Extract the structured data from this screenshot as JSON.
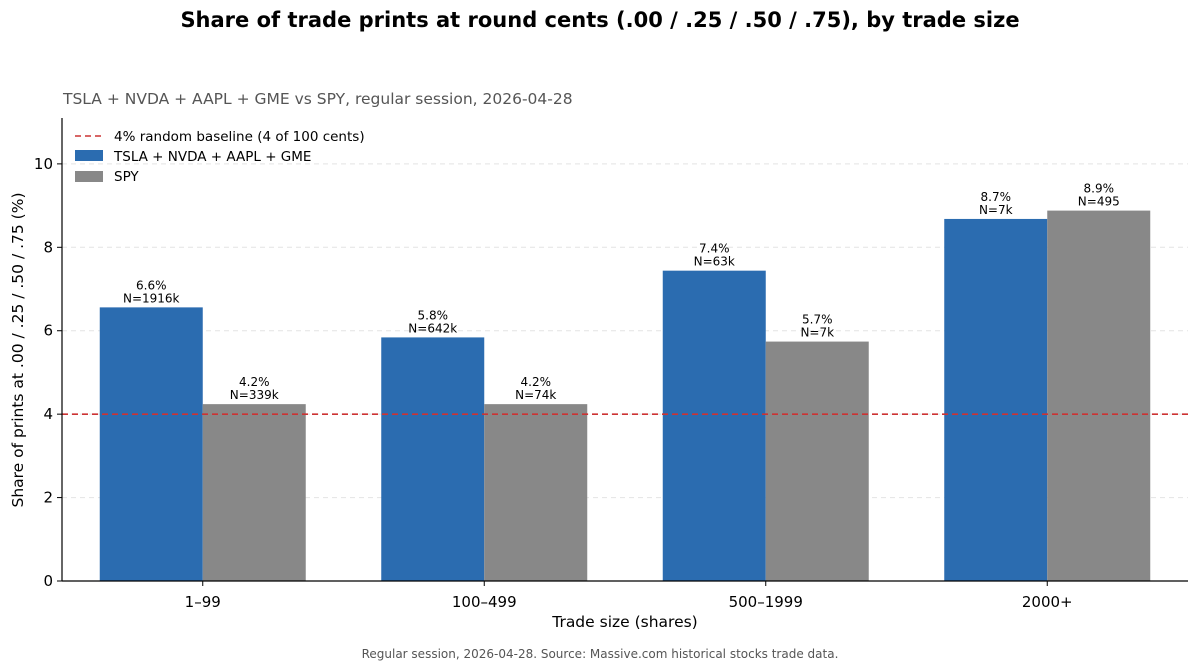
{
  "chart_data": {
    "type": "bar",
    "title": "Share of trade prints at round cents (.00 / .25 / .50 / .75), by trade size",
    "subtitle": "TSLA + NVDA + AAPL + GME vs SPY, regular session, 2026-04-28",
    "xlabel": "Trade size (shares)",
    "ylabel": "Share of prints at .00 / .25 / .50 / .75 (%)",
    "ylim": [
      0,
      11.1
    ],
    "yticks": [
      0,
      2,
      4,
      6,
      8,
      10
    ],
    "categories": [
      "1–99",
      "100–499",
      "500–1999",
      "2000+"
    ],
    "series": [
      {
        "name": "TSLA + NVDA + AAPL + GME",
        "color": "#2b6cb0",
        "values": [
          6.56,
          5.84,
          7.44,
          8.68
        ],
        "labels": [
          "6.6%",
          "5.8%",
          "7.4%",
          "8.7%"
        ],
        "counts": [
          "N=1916k",
          "N=642k",
          "N=63k",
          "N=7k"
        ]
      },
      {
        "name": "SPY",
        "color": "#888888",
        "values": [
          4.24,
          4.24,
          5.74,
          8.88
        ],
        "labels": [
          "4.2%",
          "4.2%",
          "5.7%",
          "8.9%"
        ],
        "counts": [
          "N=339k",
          "N=74k",
          "N=7k",
          "N=495"
        ]
      }
    ],
    "baseline": {
      "value": 4,
      "label": "4% random baseline (4 of 100 cents)",
      "color": "#cc3333",
      "style": "dashed"
    },
    "grid": "horizontal-dashed",
    "legend_position": "top-left"
  },
  "footer": "Regular session, 2026-04-28. Source: Massive.com historical stocks trade data."
}
